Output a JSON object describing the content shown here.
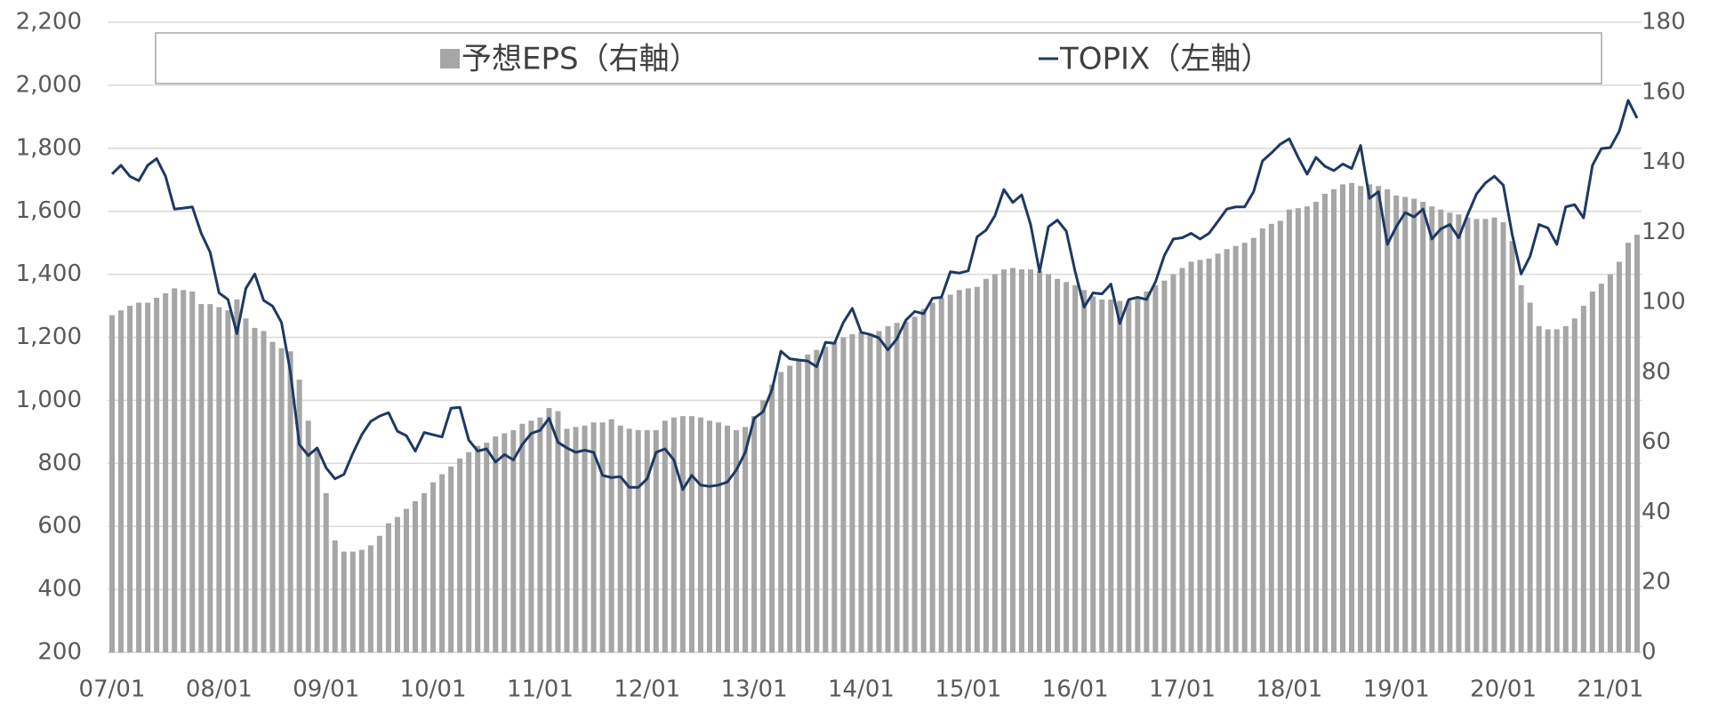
{
  "chart_data": {
    "type": "bar_line",
    "categories": [
      "07/01",
      null,
      null,
      null,
      null,
      null,
      null,
      null,
      null,
      null,
      null,
      null,
      "08/01",
      null,
      null,
      null,
      null,
      null,
      null,
      null,
      null,
      null,
      null,
      null,
      "09/01",
      null,
      null,
      null,
      null,
      null,
      null,
      null,
      null,
      null,
      null,
      null,
      "10/01",
      null,
      null,
      null,
      null,
      null,
      null,
      null,
      null,
      null,
      null,
      null,
      "11/01",
      null,
      null,
      null,
      null,
      null,
      null,
      null,
      null,
      null,
      null,
      null,
      "12/01",
      null,
      null,
      null,
      null,
      null,
      null,
      null,
      null,
      null,
      null,
      null,
      "13/01",
      null,
      null,
      null,
      null,
      null,
      null,
      null,
      null,
      null,
      null,
      null,
      "14/01",
      null,
      null,
      null,
      null,
      null,
      null,
      null,
      null,
      null,
      null,
      null,
      "15/01",
      null,
      null,
      null,
      null,
      null,
      null,
      null,
      null,
      null,
      null,
      null,
      "16/01",
      null,
      null,
      null,
      null,
      null,
      null,
      null,
      null,
      null,
      null,
      null,
      "17/01",
      null,
      null,
      null,
      null,
      null,
      null,
      null,
      null,
      null,
      null,
      null,
      "18/01",
      null,
      null,
      null,
      null,
      null,
      null,
      null,
      null,
      null,
      null,
      null,
      "19/01",
      null,
      null,
      null,
      null,
      null,
      null,
      null,
      null,
      null,
      null,
      null,
      "20/01",
      null,
      null,
      null,
      null,
      null,
      null,
      null,
      null,
      null,
      null,
      null,
      "21/01",
      null,
      null,
      null
    ],
    "series": [
      {
        "name": "予想EPS（右軸）",
        "kind": "bar",
        "axis": "y2",
        "color": "#a6a6a6",
        "values": [
          96.3,
          97.7,
          99,
          99.9,
          99.9,
          101.3,
          102.6,
          104,
          103.5,
          103.1,
          99.5,
          99.5,
          98.6,
          97.7,
          100.8,
          95.4,
          92.7,
          91.8,
          88.7,
          86.9,
          86,
          77.9,
          66.2,
          58,
          45.5,
          32,
          28.8,
          28.8,
          29.3,
          30.6,
          33.3,
          36.9,
          38.7,
          41,
          43.2,
          45.5,
          48.6,
          50.9,
          53.1,
          55.4,
          57.2,
          59,
          59.9,
          61.7,
          62.6,
          63.5,
          65.3,
          66.2,
          67.1,
          69.8,
          68.9,
          63.9,
          64.4,
          64.8,
          65.7,
          65.7,
          66.6,
          64.8,
          63.9,
          63.5,
          63.5,
          63.5,
          66.2,
          67.1,
          67.5,
          67.5,
          67.1,
          66.2,
          65.7,
          64.8,
          63.5,
          64.4,
          67.5,
          72,
          76.5,
          80.1,
          81.9,
          83.7,
          85.1,
          86.4,
          87.3,
          88.7,
          90,
          90.9,
          91.4,
          90.9,
          91.8,
          93.2,
          94.1,
          94.5,
          95.9,
          98.1,
          99.9,
          101.3,
          102.2,
          103.5,
          104,
          104.4,
          106.7,
          108,
          109.4,
          109.8,
          109.4,
          109.4,
          108.9,
          108,
          106.7,
          105.8,
          104.9,
          103.5,
          101.7,
          100.8,
          100.8,
          100.4,
          100.4,
          101.3,
          103.1,
          104.9,
          106.2,
          108,
          109.8,
          111.6,
          112.1,
          112.5,
          113.9,
          115.2,
          116.1,
          117,
          118.4,
          121.1,
          122.4,
          123.3,
          126.5,
          126.9,
          127.4,
          128.7,
          131,
          132.3,
          133.7,
          134.1,
          133.2,
          133.7,
          133.2,
          132.3,
          130.5,
          130.1,
          129.6,
          128.7,
          127.4,
          126.5,
          125.6,
          125.1,
          124.2,
          123.8,
          123.8,
          124.2,
          122.9,
          117.5,
          104.9,
          99.9,
          93.2,
          92.3,
          92.3,
          93.2,
          95.4,
          99,
          103.1,
          105.3,
          108,
          111.6,
          117,
          119.3
        ]
      },
      {
        "name": "TOPIX（左軸）",
        "kind": "line",
        "axis": "y",
        "color": "#1f3864",
        "values": [
          1718,
          1746,
          1711,
          1697,
          1746,
          1767,
          1711,
          1607,
          1610,
          1614,
          1530,
          1470,
          1341,
          1320,
          1212,
          1355,
          1401,
          1317,
          1299,
          1247,
          1090,
          860,
          825,
          849,
          786,
          751,
          765,
          832,
          891,
          933,
          950,
          961,
          902,
          888,
          839,
          898,
          891,
          884,
          975,
          978,
          874,
          839,
          846,
          804,
          828,
          811,
          860,
          895,
          905,
          943,
          867,
          849,
          835,
          842,
          835,
          762,
          755,
          758,
          724,
          724,
          751,
          835,
          846,
          811,
          717,
          762,
          731,
          727,
          731,
          741,
          779,
          835,
          943,
          964,
          1034,
          1156,
          1132,
          1128,
          1125,
          1107,
          1184,
          1181,
          1247,
          1292,
          1216,
          1209,
          1198,
          1160,
          1195,
          1254,
          1282,
          1275,
          1324,
          1327,
          1408,
          1404,
          1411,
          1519,
          1540,
          1586,
          1669,
          1628,
          1652,
          1558,
          1408,
          1551,
          1572,
          1537,
          1408,
          1296,
          1341,
          1338,
          1369,
          1244,
          1320,
          1327,
          1320,
          1376,
          1460,
          1512,
          1516,
          1530,
          1512,
          1530,
          1568,
          1607,
          1614,
          1614,
          1662,
          1760,
          1785,
          1813,
          1830,
          1771,
          1718,
          1771,
          1743,
          1729,
          1750,
          1736,
          1809,
          1641,
          1662,
          1495,
          1551,
          1596,
          1582,
          1607,
          1512,
          1544,
          1558,
          1516,
          1589,
          1655,
          1690,
          1711,
          1683,
          1526,
          1401,
          1457,
          1558,
          1547,
          1495,
          1614,
          1621,
          1579,
          1746,
          1799,
          1802,
          1854,
          1952,
          1896
        ]
      }
    ],
    "ylim": [
      200,
      2200
    ],
    "yticks": [
      200,
      400,
      600,
      800,
      {
        "value": 1000,
        "label": "1,000"
      },
      {
        "value": 1200,
        "label": "1,200"
      },
      {
        "value": 1400,
        "label": "1,400"
      },
      {
        "value": 1600,
        "label": "1,600"
      },
      {
        "value": 1800,
        "label": "1,800"
      },
      {
        "value": 2000,
        "label": "2,000"
      },
      {
        "value": 2200,
        "label": "2,200"
      }
    ],
    "y2lim": [
      0,
      180
    ],
    "y2ticks": [
      0,
      20,
      40,
      60,
      80,
      100,
      120,
      140,
      160,
      180
    ],
    "grid": true,
    "legend": "top"
  }
}
